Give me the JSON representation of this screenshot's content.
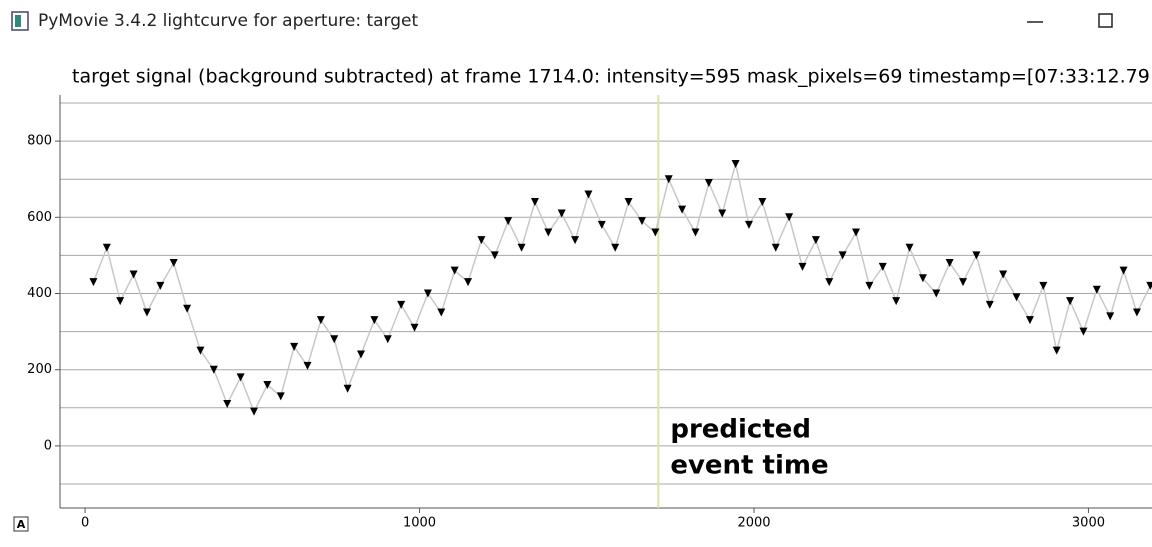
{
  "window": {
    "title": "PyMovie 3.4.2 lightcurve for aperture: target"
  },
  "chart_data": {
    "type": "scatter",
    "title": "target signal (background subtracted) at frame 1714.0: intensity=595 mask_pixels=69 timestamp=[07:33:12.79",
    "x": [
      25,
      65,
      105,
      145,
      185,
      225,
      265,
      305,
      345,
      385,
      425,
      465,
      505,
      545,
      585,
      625,
      665,
      705,
      745,
      785,
      825,
      865,
      905,
      945,
      985,
      1025,
      1065,
      1105,
      1145,
      1185,
      1225,
      1265,
      1305,
      1345,
      1385,
      1425,
      1465,
      1505,
      1545,
      1585,
      1625,
      1665,
      1705,
      1745,
      1785,
      1825,
      1865,
      1905,
      1945,
      1985,
      2025,
      2065,
      2105,
      2145,
      2185,
      2225,
      2265,
      2305,
      2345,
      2385,
      2425,
      2465,
      2505,
      2545,
      2585,
      2625,
      2665,
      2705,
      2745,
      2785,
      2825,
      2865,
      2905,
      2945,
      2985,
      3025,
      3065,
      3105,
      3145,
      3185
    ],
    "series": [
      {
        "color": "#000000",
        "line_color": "#c8c8c8",
        "values": [
          430,
          520,
          380,
          450,
          350,
          420,
          480,
          360,
          250,
          200,
          110,
          180,
          90,
          160,
          130,
          260,
          210,
          330,
          280,
          150,
          240,
          330,
          280,
          370,
          310,
          400,
          350,
          460,
          430,
          540,
          500,
          590,
          520,
          640,
          560,
          610,
          540,
          660,
          580,
          520,
          640,
          590,
          560,
          700,
          620,
          560,
          690,
          610,
          740,
          580,
          640,
          520,
          600,
          470,
          540,
          430,
          500,
          560,
          420,
          470,
          380,
          520,
          440,
          400,
          480,
          430,
          500,
          370,
          450,
          390,
          330,
          420,
          250,
          380,
          300,
          410,
          340,
          460,
          350,
          420
        ]
      }
    ],
    "xlim": [
      -75,
      3190
    ],
    "ylim": [
      -163,
      921
    ],
    "xticks": [
      0,
      1000,
      2000,
      3000
    ],
    "yticks": [
      0,
      200,
      400,
      600,
      800
    ],
    "y_grid_lines": [
      -100,
      0,
      100,
      200,
      300,
      400,
      500,
      600,
      700,
      800,
      900
    ],
    "grid": true,
    "event_marker": {
      "x": 1714,
      "color": "#d8e6a8",
      "label_lines": [
        "predicted",
        "event time"
      ]
    }
  }
}
